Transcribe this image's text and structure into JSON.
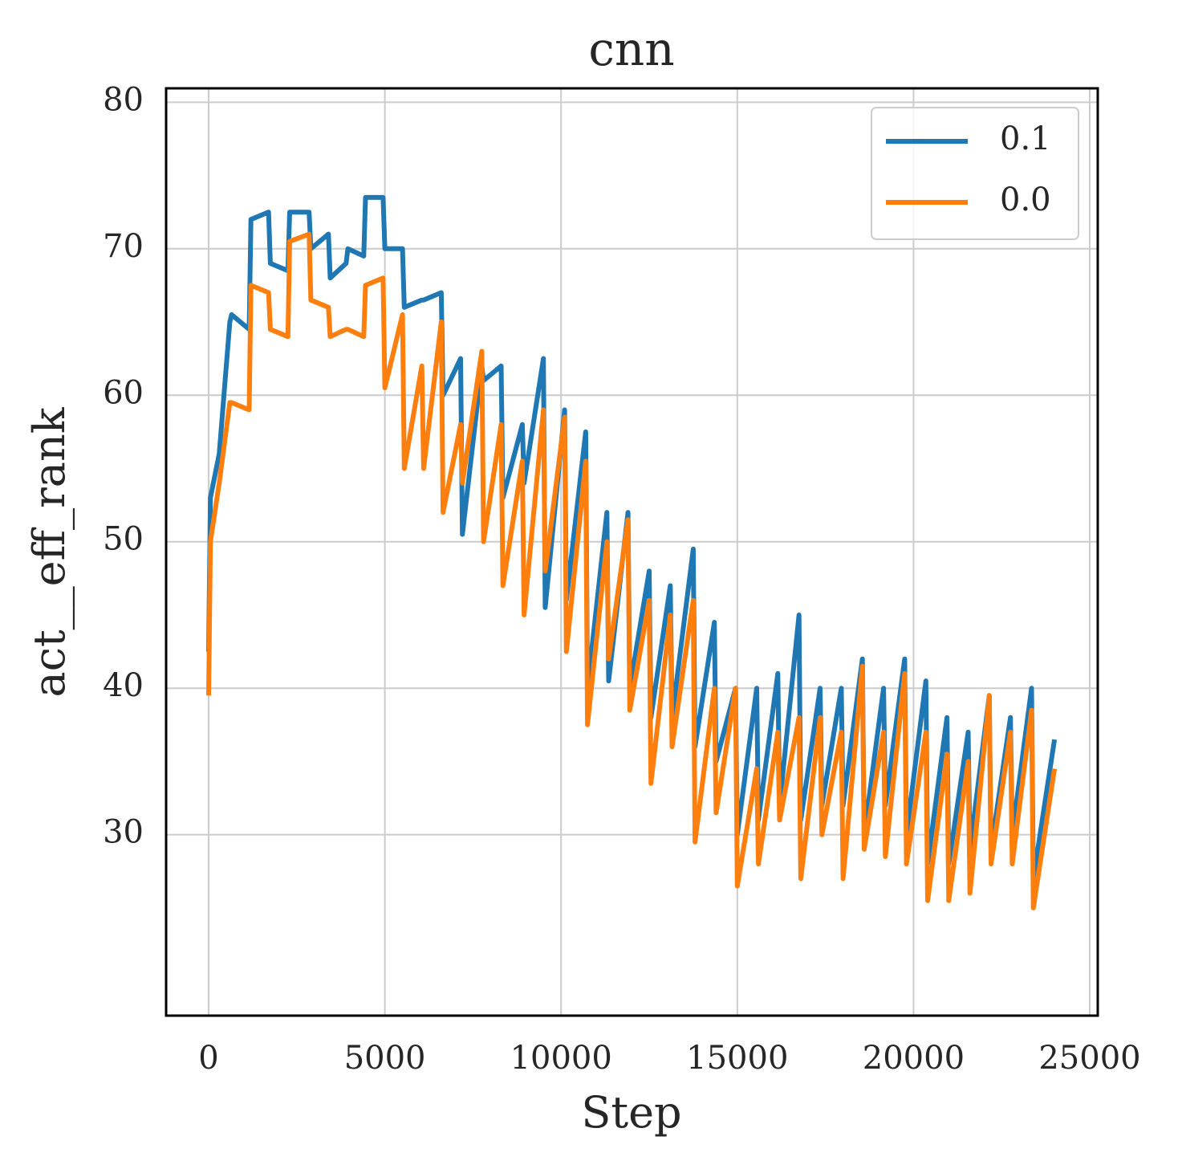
{
  "chart_data": {
    "type": "line",
    "title": "cnn",
    "x_label": "Step",
    "y_label": "act__eff_rank",
    "x": [
      0,
      50,
      300,
      600,
      650,
      1150,
      1200,
      1700,
      1750,
      2250,
      2300,
      2850,
      2900,
      3400,
      3450,
      3900,
      3950,
      4400,
      4450,
      4950,
      5000,
      5500,
      5550,
      6050,
      6100,
      6600,
      6650,
      7150,
      7200,
      7750,
      7800,
      8300,
      8350,
      8900,
      8950,
      9500,
      9550,
      10100,
      10150,
      10700,
      10750,
      11300,
      11350,
      11900,
      11950,
      12500,
      12550,
      13100,
      13150,
      13750,
      13800,
      14350,
      14400,
      14950,
      15000,
      15550,
      15600,
      16150,
      16200,
      16750,
      16800,
      17350,
      17400,
      17950,
      18000,
      18550,
      18600,
      19150,
      19200,
      19750,
      19800,
      20350,
      20400,
      20950,
      21000,
      21550,
      21600,
      22150,
      22200,
      22750,
      22800,
      23350,
      23400,
      24000
    ],
    "series": [
      {
        "name": "0.1",
        "color": "#1f77b4",
        "values": [
          42.5,
          53,
          56,
          65,
          65.5,
          64.5,
          72,
          72.5,
          69,
          68.5,
          72.5,
          72.5,
          70,
          71,
          68,
          69,
          70,
          69.5,
          73.5,
          73.5,
          70,
          70,
          66,
          66.5,
          66.5,
          67,
          60,
          62.5,
          50.5,
          62,
          61,
          62,
          53,
          58,
          54,
          62.5,
          45.5,
          59,
          46,
          57.5,
          40,
          52,
          40.5,
          52,
          40,
          48,
          38,
          47,
          38,
          49.5,
          36,
          44.5,
          35,
          40,
          30,
          40,
          31,
          41,
          32,
          45,
          31,
          40,
          32,
          40,
          32,
          42,
          30,
          40,
          32,
          42,
          30,
          40.5,
          28,
          38,
          28,
          37,
          29,
          39.5,
          29,
          38,
          30,
          40,
          27,
          36.5
        ]
      },
      {
        "name": "0.0",
        "color": "#ff7f0e",
        "values": [
          39.5,
          50,
          54,
          59.5,
          59.5,
          59,
          67.5,
          67,
          64.5,
          64,
          70.5,
          71,
          66.5,
          66,
          64,
          64.5,
          64.5,
          64,
          67.5,
          68,
          60.5,
          65.5,
          55,
          62,
          55,
          65,
          52,
          58,
          54,
          63,
          50,
          58,
          47,
          55.5,
          45,
          59,
          48,
          58.5,
          42.5,
          55.5,
          37.5,
          50,
          42,
          51.5,
          38.5,
          46,
          33.5,
          45,
          36,
          46,
          29.5,
          40,
          31.5,
          40,
          26.5,
          34.5,
          28,
          37,
          31,
          38,
          27,
          38,
          30,
          37,
          27,
          41.5,
          29,
          37,
          28.5,
          41,
          28,
          37,
          25.5,
          35.5,
          25.5,
          35,
          26,
          39.5,
          28,
          37,
          28,
          38.5,
          25,
          34.5
        ]
      }
    ],
    "xlim": [
      -1207,
      25228
    ],
    "ylim": [
      17.65,
      80.95
    ],
    "xticks": [
      0,
      5000,
      10000,
      15000,
      20000,
      25000
    ],
    "yticks": [
      30,
      40,
      50,
      60,
      70,
      80
    ],
    "grid": true,
    "legend": "upper right"
  }
}
